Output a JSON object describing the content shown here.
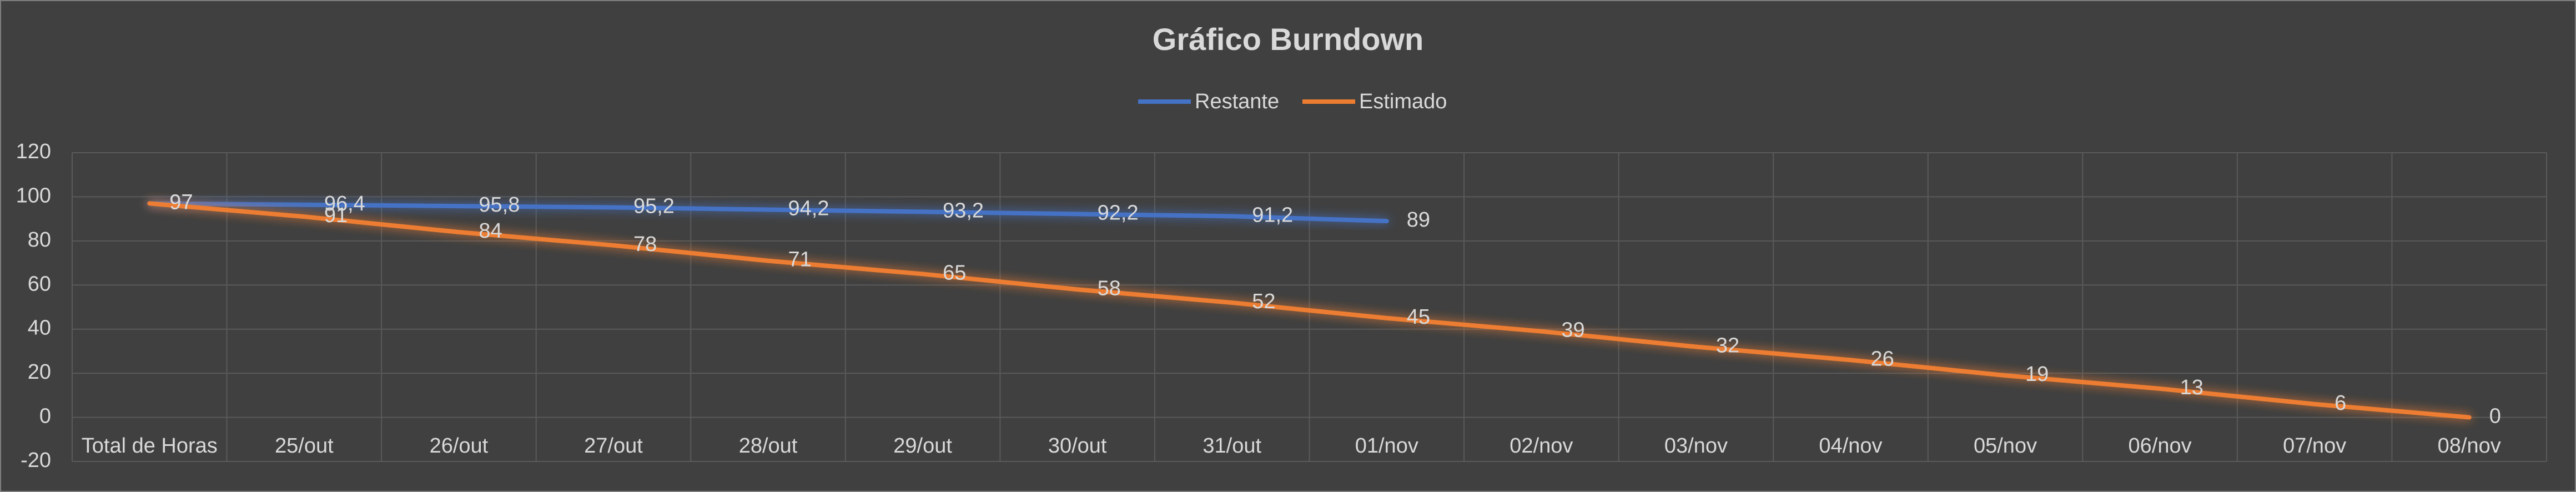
{
  "chart_data": {
    "type": "line",
    "title": "Gráfico Burndown",
    "categories": [
      "Total de Horas",
      "25/out",
      "26/out",
      "27/out",
      "28/out",
      "29/out",
      "30/out",
      "31/out",
      "01/nov",
      "02/nov",
      "03/nov",
      "04/nov",
      "05/nov",
      "06/nov",
      "07/nov",
      "08/nov"
    ],
    "series": [
      {
        "name": "Restante",
        "color": "#4472c4",
        "values": [
          97,
          96.4,
          95.8,
          95.2,
          94.2,
          93.2,
          92.2,
          91.2,
          89,
          null,
          null,
          null,
          null,
          null,
          null,
          null
        ],
        "value_labels": [
          "97",
          "96,4",
          "95,8",
          "95,2",
          "94,2",
          "93,2",
          "92,2",
          "91,2",
          "89",
          null,
          null,
          null,
          null,
          null,
          null,
          null
        ]
      },
      {
        "name": "Estimado",
        "color": "#ed7d31",
        "values": [
          97,
          91,
          84,
          78,
          71,
          65,
          58,
          52,
          45,
          39,
          32,
          26,
          19,
          13,
          6,
          0
        ]
      }
    ],
    "ylim": [
      -20,
      120
    ],
    "yticks": [
      -20,
      0,
      20,
      40,
      60,
      80,
      100,
      120
    ],
    "grid": true,
    "legend": "top"
  }
}
